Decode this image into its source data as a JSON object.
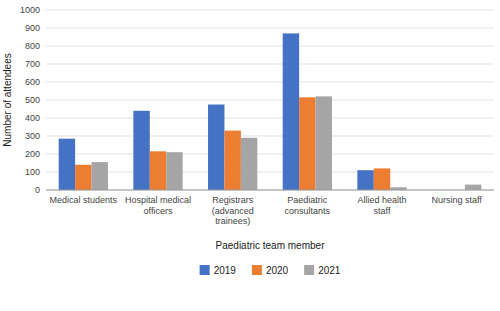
{
  "chart_data": {
    "type": "bar",
    "xlabel": "Paediatric team member",
    "ylabel": "Number of attendees",
    "categories": [
      "Medical students",
      "Hospital medical\nofficers",
      "Registrars\n(advanced\ntrainees)",
      "Paediatric\nconsultants",
      "Allied health\nstaff",
      "Nursing staff"
    ],
    "series": [
      {
        "name": "2019",
        "color": "#4472C4",
        "values": [
          285,
          440,
          475,
          870,
          110,
          0
        ]
      },
      {
        "name": "2020",
        "color": "#ED7D31",
        "values": [
          140,
          215,
          330,
          515,
          120,
          0
        ]
      },
      {
        "name": "2021",
        "color": "#A5A5A5",
        "values": [
          155,
          210,
          290,
          520,
          15,
          30
        ]
      }
    ],
    "ylim": [
      0,
      1000
    ],
    "yticks": [
      0,
      100,
      200,
      300,
      400,
      500,
      600,
      700,
      800,
      900,
      1000
    ],
    "grid": true,
    "legend": "bottom"
  }
}
